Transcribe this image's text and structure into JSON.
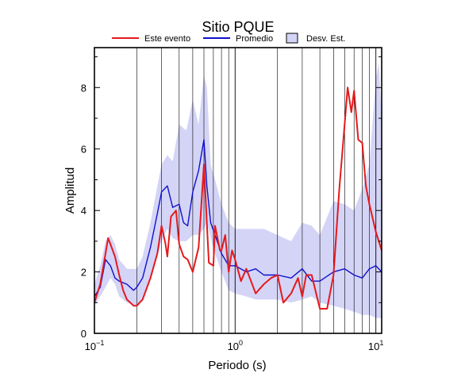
{
  "chart_data": {
    "type": "line",
    "title": "Sitio PQUE",
    "xlabel": "Periodo (s)",
    "ylabel": "Amplitud",
    "xscale": "log",
    "xlim": [
      0.1,
      11
    ],
    "ylim": [
      0,
      9.3
    ],
    "x_ticks": [
      {
        "base": "10",
        "exp": "−1",
        "value": 0.1
      },
      {
        "base": "10",
        "exp": "0",
        "value": 1
      },
      {
        "base": "10",
        "exp": "1",
        "value": 10
      }
    ],
    "y_ticks": [
      0,
      2,
      4,
      6,
      8
    ],
    "grid": "vertical log gridlines",
    "legend": {
      "placement": "top",
      "entries": [
        {
          "label": "Este evento",
          "color": "#e41a1c",
          "kind": "line"
        },
        {
          "label": "Promedio",
          "color": "#1010cc",
          "kind": "line"
        },
        {
          "label": "Desv. Est.",
          "color": "#d4d4f7",
          "kind": "patch"
        }
      ]
    },
    "band": {
      "name": "Desv. Est.",
      "color": "#d4d4f7",
      "x": [
        0.1,
        0.11,
        0.12,
        0.13,
        0.14,
        0.15,
        0.17,
        0.2,
        0.22,
        0.25,
        0.28,
        0.3,
        0.33,
        0.36,
        0.4,
        0.45,
        0.5,
        0.55,
        0.6,
        0.63,
        0.67,
        0.72,
        0.8,
        0.9,
        1.0,
        1.2,
        1.4,
        1.6,
        2.0,
        2.5,
        3.0,
        3.5,
        4.0,
        5.0,
        6.0,
        7.0,
        8.0,
        9.0,
        10.0,
        10.5,
        11.0
      ],
      "upper": [
        1.6,
        2.2,
        3.0,
        3.2,
        2.9,
        2.4,
        2.1,
        2.1,
        2.5,
        3.6,
        4.8,
        5.5,
        5.8,
        5.6,
        6.8,
        6.6,
        7.6,
        6.8,
        8.4,
        8.0,
        5.5,
        5.0,
        4.2,
        3.6,
        3.4,
        3.4,
        3.4,
        3.4,
        3.2,
        3.0,
        3.6,
        3.5,
        3.2,
        4.3,
        4.2,
        4.0,
        4.7,
        5.5,
        8.3,
        8.8,
        7.0
      ],
      "lower": [
        0.9,
        1.2,
        1.5,
        1.8,
        1.6,
        1.2,
        1.0,
        0.9,
        1.1,
        1.8,
        2.5,
        3.0,
        3.4,
        3.1,
        3.0,
        3.0,
        3.2,
        3.2,
        3.4,
        3.6,
        3.1,
        2.6,
        2.0,
        1.4,
        1.3,
        1.2,
        1.1,
        1.1,
        1.1,
        1.0,
        1.1,
        1.2,
        1.0,
        0.9,
        0.8,
        0.7,
        0.6,
        0.6,
        0.5,
        0.5,
        0.5
      ]
    },
    "series": [
      {
        "name": "Promedio",
        "color": "#1010cc",
        "x": [
          0.1,
          0.11,
          0.12,
          0.13,
          0.14,
          0.15,
          0.17,
          0.19,
          0.2,
          0.22,
          0.25,
          0.28,
          0.3,
          0.33,
          0.36,
          0.4,
          0.43,
          0.46,
          0.5,
          0.55,
          0.6,
          0.63,
          0.67,
          0.72,
          0.8,
          0.9,
          1.0,
          1.2,
          1.4,
          1.6,
          2.0,
          2.5,
          3.0,
          3.5,
          4.0,
          5.0,
          6.0,
          7.0,
          8.0,
          9.0,
          10.0,
          11.0
        ],
        "y": [
          1.2,
          1.5,
          2.4,
          2.2,
          1.8,
          1.7,
          1.6,
          1.4,
          1.5,
          1.8,
          2.8,
          3.9,
          4.6,
          4.8,
          4.1,
          4.2,
          3.6,
          3.5,
          4.6,
          5.3,
          6.3,
          4.8,
          3.6,
          3.2,
          2.6,
          2.2,
          2.2,
          2.0,
          2.1,
          1.9,
          1.9,
          1.8,
          2.1,
          1.7,
          1.7,
          2.0,
          2.1,
          1.9,
          1.8,
          2.1,
          2.2,
          2.0
        ]
      },
      {
        "name": "Este evento",
        "color": "#e41a1c",
        "x": [
          0.1,
          0.11,
          0.12,
          0.125,
          0.13,
          0.14,
          0.15,
          0.16,
          0.17,
          0.19,
          0.2,
          0.22,
          0.25,
          0.28,
          0.3,
          0.32,
          0.33,
          0.35,
          0.38,
          0.4,
          0.43,
          0.46,
          0.5,
          0.55,
          0.6,
          0.62,
          0.65,
          0.7,
          0.72,
          0.78,
          0.8,
          0.85,
          0.9,
          0.95,
          1.0,
          1.1,
          1.2,
          1.4,
          1.6,
          1.8,
          2.0,
          2.2,
          2.5,
          2.8,
          3.0,
          3.2,
          3.5,
          4.0,
          4.5,
          5.0,
          5.5,
          6.0,
          6.3,
          6.7,
          7.0,
          7.5,
          8.0,
          8.5,
          9.0,
          10.0,
          11.0
        ],
        "y": [
          1.0,
          1.6,
          2.6,
          3.1,
          2.9,
          2.5,
          1.9,
          1.4,
          1.1,
          0.9,
          0.9,
          1.1,
          1.8,
          2.6,
          3.5,
          2.9,
          2.5,
          3.8,
          4.0,
          2.9,
          2.5,
          2.4,
          2.0,
          2.8,
          5.5,
          4.2,
          2.3,
          2.2,
          3.5,
          2.7,
          2.7,
          3.2,
          2.0,
          2.7,
          2.4,
          1.7,
          2.1,
          1.3,
          1.6,
          1.8,
          1.9,
          1.0,
          1.3,
          1.8,
          1.2,
          1.9,
          1.9,
          0.8,
          0.8,
          1.9,
          4.7,
          6.8,
          8.0,
          7.2,
          7.9,
          6.3,
          6.2,
          4.8,
          4.2,
          3.3,
          2.7
        ]
      }
    ]
  }
}
